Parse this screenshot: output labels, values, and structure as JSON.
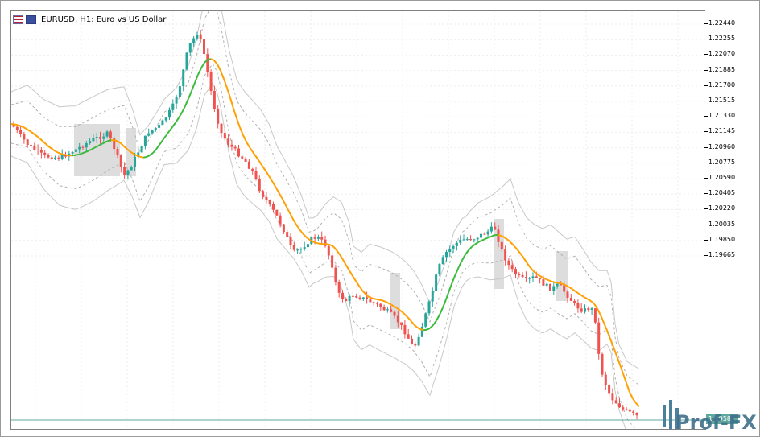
{
  "window": {
    "title": "EURUSD, H1:  Euro vs US Dollar",
    "symbol": "EURUSD",
    "timeframe": "H1",
    "description": "Euro vs US Dollar"
  },
  "price_scale": {
    "labels": [
      "1.22440",
      "1.22255",
      "1.22070",
      "1.21885",
      "1.21700",
      "1.21515",
      "1.21330",
      "1.21145",
      "1.20960",
      "1.20775",
      "1.20590",
      "1.20405",
      "1.20220",
      "1.20035",
      "1.19850",
      "1.19665"
    ],
    "current_price": "1.1958"
  },
  "colors": {
    "bull_candle": "#26a69a",
    "bear_candle": "#ef5350",
    "ma_rising": "#3cba3c",
    "ma_falling": "#ffa000",
    "bands": "#c8c8c8",
    "grid": "#eeeeee",
    "squeeze_fill": "#d9d9d9",
    "current_price_line": "#5fa8a0"
  },
  "logo": {
    "text": "Prof-FX"
  }
}
